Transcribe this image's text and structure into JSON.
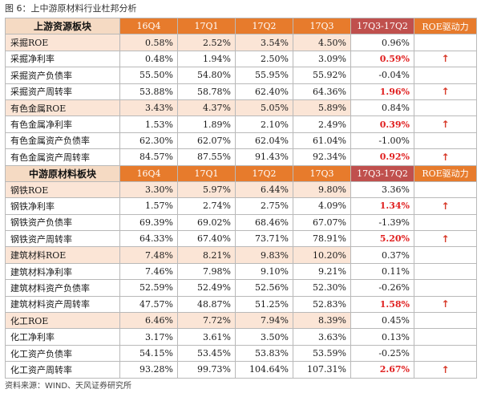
{
  "figure_title": "图 6：上中游原材料行业杜邦分析",
  "source_note": "资料来源：WIND、天风证券研究所",
  "columns": [
    "16Q4",
    "17Q1",
    "17Q2",
    "17Q3",
    "17Q3-17Q2",
    "ROE驱动力"
  ],
  "sections": [
    {
      "title": "上游资源板块",
      "rows": [
        {
          "name": "采掘ROE",
          "roe": true,
          "values": [
            "0.58%",
            "2.52%",
            "3.54%",
            "4.50%"
          ],
          "diff": "0.96%",
          "diff_red": false,
          "arrow": ""
        },
        {
          "name": "采掘净利率",
          "roe": false,
          "values": [
            "0.48%",
            "1.94%",
            "2.50%",
            "3.09%"
          ],
          "diff": "0.59%",
          "diff_red": true,
          "arrow": "↑"
        },
        {
          "name": "采掘资产负债率",
          "roe": false,
          "values": [
            "55.50%",
            "54.80%",
            "55.95%",
            "55.92%"
          ],
          "diff": "-0.04%",
          "diff_red": false,
          "arrow": ""
        },
        {
          "name": "采掘资产周转率",
          "roe": false,
          "values": [
            "53.88%",
            "58.78%",
            "62.40%",
            "64.36%"
          ],
          "diff": "1.96%",
          "diff_red": true,
          "arrow": "↑"
        },
        {
          "name": "有色金属ROE",
          "roe": true,
          "values": [
            "3.43%",
            "4.37%",
            "5.05%",
            "5.89%"
          ],
          "diff": "0.84%",
          "diff_red": false,
          "arrow": ""
        },
        {
          "name": "有色金属净利率",
          "roe": false,
          "values": [
            "1.53%",
            "1.89%",
            "2.10%",
            "2.49%"
          ],
          "diff": "0.39%",
          "diff_red": true,
          "arrow": "↑"
        },
        {
          "name": "有色金属资产负债率",
          "roe": false,
          "values": [
            "62.30%",
            "62.07%",
            "62.04%",
            "61.04%"
          ],
          "diff": "-1.00%",
          "diff_red": false,
          "arrow": ""
        },
        {
          "name": "有色金属资产周转率",
          "roe": false,
          "values": [
            "84.57%",
            "87.55%",
            "91.43%",
            "92.34%"
          ],
          "diff": "0.92%",
          "diff_red": true,
          "arrow": "↑"
        }
      ]
    },
    {
      "title": "中游原材料板块",
      "rows": [
        {
          "name": "钢铁ROE",
          "roe": true,
          "values": [
            "3.30%",
            "5.97%",
            "6.44%",
            "9.80%"
          ],
          "diff": "3.36%",
          "diff_red": false,
          "arrow": ""
        },
        {
          "name": "钢铁净利率",
          "roe": false,
          "values": [
            "1.57%",
            "2.74%",
            "2.75%",
            "4.09%"
          ],
          "diff": "1.34%",
          "diff_red": true,
          "arrow": "↑"
        },
        {
          "name": "钢铁资产负债率",
          "roe": false,
          "values": [
            "69.39%",
            "69.02%",
            "68.46%",
            "67.07%"
          ],
          "diff": "-1.39%",
          "diff_red": false,
          "arrow": ""
        },
        {
          "name": "钢铁资产周转率",
          "roe": false,
          "values": [
            "64.33%",
            "67.40%",
            "73.71%",
            "78.91%"
          ],
          "diff": "5.20%",
          "diff_red": true,
          "arrow": "↑"
        },
        {
          "name": "建筑材料ROE",
          "roe": true,
          "values": [
            "7.48%",
            "8.21%",
            "9.83%",
            "10.20%"
          ],
          "diff": "0.37%",
          "diff_red": false,
          "arrow": ""
        },
        {
          "name": "建筑材料净利率",
          "roe": false,
          "values": [
            "7.46%",
            "7.98%",
            "9.10%",
            "9.21%"
          ],
          "diff": "0.11%",
          "diff_red": false,
          "arrow": ""
        },
        {
          "name": "建筑材料资产负债率",
          "roe": false,
          "values": [
            "52.59%",
            "52.49%",
            "52.56%",
            "52.30%"
          ],
          "diff": "-0.26%",
          "diff_red": false,
          "arrow": ""
        },
        {
          "name": "建筑材料资产周转率",
          "roe": false,
          "values": [
            "47.57%",
            "48.87%",
            "51.25%",
            "52.83%"
          ],
          "diff": "1.58%",
          "diff_red": true,
          "arrow": "↑"
        },
        {
          "name": "化工ROE",
          "roe": true,
          "values": [
            "6.46%",
            "7.72%",
            "7.94%",
            "8.39%"
          ],
          "diff": "0.45%",
          "diff_red": false,
          "arrow": ""
        },
        {
          "name": "化工净利率",
          "roe": false,
          "values": [
            "3.17%",
            "3.61%",
            "3.50%",
            "3.63%"
          ],
          "diff": "0.13%",
          "diff_red": false,
          "arrow": ""
        },
        {
          "name": "化工资产负债率",
          "roe": false,
          "values": [
            "54.15%",
            "53.45%",
            "53.83%",
            "53.59%"
          ],
          "diff": "-0.25%",
          "diff_red": false,
          "arrow": ""
        },
        {
          "name": "化工资产周转率",
          "roe": false,
          "values": [
            "93.28%",
            "99.73%",
            "104.64%",
            "107.31%"
          ],
          "diff": "2.67%",
          "diff_red": true,
          "arrow": "↑"
        }
      ]
    }
  ]
}
